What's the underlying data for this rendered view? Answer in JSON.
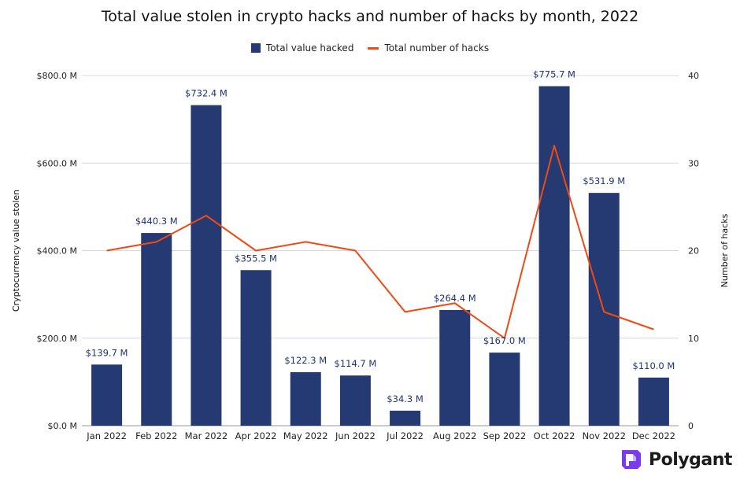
{
  "chart_data": {
    "type": "bar",
    "title": "Total value stolen in crypto hacks and number of hacks by month, 2022",
    "categories": [
      "Jan 2022",
      "Feb 2022",
      "Mar 2022",
      "Apr 2022",
      "May 2022",
      "Jun 2022",
      "Jul 2022",
      "Aug 2022",
      "Sep 2022",
      "Oct 2022",
      "Nov 2022",
      "Dec 2022"
    ],
    "series": [
      {
        "name": "Total value hacked",
        "kind": "bar",
        "axis": "left",
        "values": [
          139.7,
          440.3,
          732.4,
          355.5,
          122.3,
          114.7,
          34.3,
          264.4,
          167.0,
          775.7,
          531.9,
          110.0
        ],
        "labels": [
          "$139.7 M",
          "$440.3 M",
          "$732.4 M",
          "$355.5 M",
          "$122.3 M",
          "$114.7 M",
          "$34.3 M",
          "$264.4 M",
          "$167.0 M",
          "$775.7 M",
          "$531.9 M",
          "$110.0 M"
        ],
        "color": "#253a73"
      },
      {
        "name": "Total number of hacks",
        "kind": "line",
        "axis": "right",
        "values": [
          20,
          21,
          24,
          20,
          21,
          20,
          13,
          14,
          10,
          32,
          13,
          11
        ],
        "color": "#f04a14"
      }
    ],
    "ylabel": "Cryptocurrency value stolen",
    "y2label": "Number of hacks",
    "ylim": [
      0,
      800
    ],
    "y2lim": [
      0,
      40
    ],
    "yticks": [
      "$0.0 M",
      "$200.0 M",
      "$400.0 M",
      "$600.0 M",
      "$800.0 M"
    ],
    "y2ticks": [
      "0",
      "10",
      "20",
      "30",
      "40"
    ],
    "grid": true,
    "legend_position": "top-center"
  },
  "brand": {
    "name": "Polygant",
    "color": "#7c3aed"
  }
}
